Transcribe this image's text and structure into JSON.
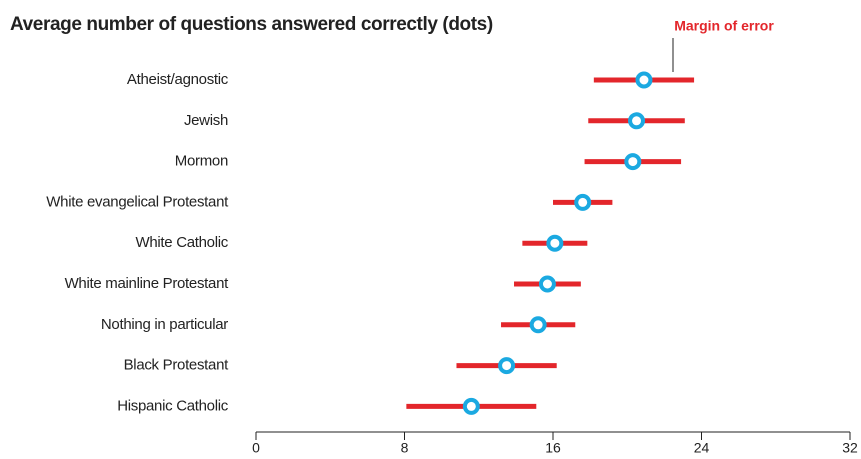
{
  "chart_data": {
    "type": "dot_error",
    "title": "Average number of questions answered correctly (dots)",
    "annotation": "Margin of error",
    "categories": [
      "Atheist/agnostic",
      "Jewish",
      "Mormon",
      "White evangelical Protestant",
      "White Catholic",
      "White mainline Protestant",
      "Nothing in particular",
      "Black Protestant",
      "Hispanic Catholic"
    ],
    "values": [
      20.9,
      20.5,
      20.3,
      17.6,
      16.1,
      15.7,
      15.2,
      13.5,
      11.6
    ],
    "errors": [
      2.7,
      2.6,
      2.6,
      1.6,
      1.75,
      1.8,
      2.0,
      2.7,
      3.5
    ],
    "dot_color": "#1ba9e1",
    "error_color": "#e3262b",
    "xlim": [
      0,
      32
    ],
    "xticks": [
      0,
      8,
      16,
      24,
      32
    ]
  }
}
